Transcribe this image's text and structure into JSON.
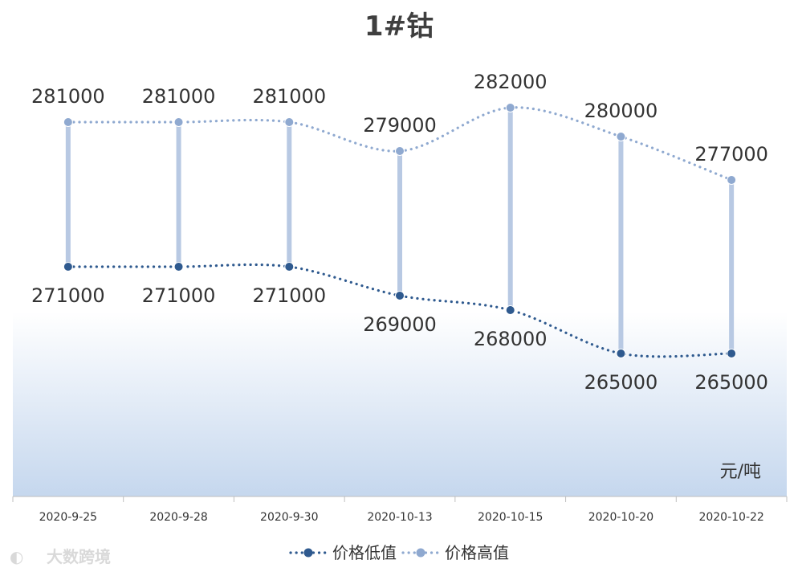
{
  "chart_data": {
    "type": "line",
    "title": "1#钴",
    "unit_label": "元/吨",
    "categories": [
      "2020-9-25",
      "2020-9-28",
      "2020-9-30",
      "2020-10-13",
      "2020-10-15",
      "2020-10-20",
      "2020-10-22"
    ],
    "series": [
      {
        "name": "价格低值",
        "values": [
          271000,
          271000,
          271000,
          269000,
          268000,
          265000,
          265000
        ],
        "color": "#2f5a8f"
      },
      {
        "name": "价格高值",
        "values": [
          281000,
          281000,
          281000,
          279000,
          282000,
          280000,
          277000
        ],
        "color": "#8fa9d0"
      }
    ],
    "data_labels": {
      "low": [
        "271000",
        "271000",
        "271000",
        "269000",
        "268000",
        "265000",
        "265000"
      ],
      "high": [
        "281000",
        "281000",
        "281000",
        "279000",
        "282000",
        "280000",
        "277000"
      ]
    },
    "drop_lines_color": "#b8c9e3",
    "smoothed": true,
    "line_style": "dotted",
    "legend_position": "bottom",
    "grid": false,
    "background_gradient": [
      "#ffffff",
      "#c5d7ee"
    ]
  },
  "watermark": "大数跨境"
}
